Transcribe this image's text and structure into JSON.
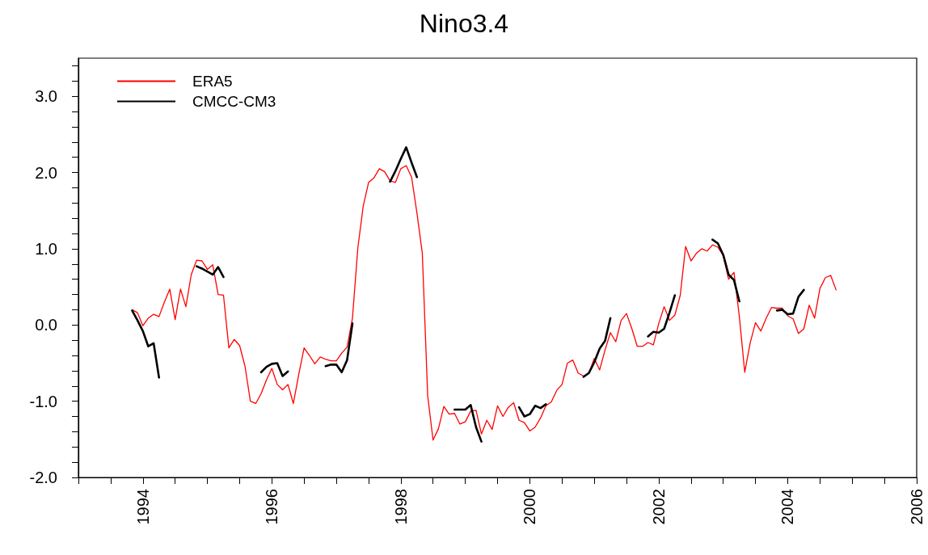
{
  "chart_data": {
    "type": "line",
    "title": "Nino3.4",
    "xlim": [
      "1993",
      "2006"
    ],
    "xticks": [
      {
        "value": "1993",
        "label": null
      },
      {
        "value": "1993-07",
        "label": null
      },
      {
        "value": "1994",
        "label": "1994"
      },
      {
        "value": "1994-07",
        "label": null
      },
      {
        "value": "1995",
        "label": null
      },
      {
        "value": "1995-07",
        "label": null
      },
      {
        "value": "1996",
        "label": "1996"
      },
      {
        "value": "1996-07",
        "label": null
      },
      {
        "value": "1997",
        "label": null
      },
      {
        "value": "1997-07",
        "label": null
      },
      {
        "value": "1998",
        "label": "1998"
      },
      {
        "value": "1998-07",
        "label": null
      },
      {
        "value": "1999",
        "label": null
      },
      {
        "value": "1999-07",
        "label": null
      },
      {
        "value": "2000",
        "label": "2000"
      },
      {
        "value": "2000-07",
        "label": null
      },
      {
        "value": "2001",
        "label": null
      },
      {
        "value": "2001-07",
        "label": null
      },
      {
        "value": "2002",
        "label": "2002"
      },
      {
        "value": "2002-07",
        "label": null
      },
      {
        "value": "2003",
        "label": null
      },
      {
        "value": "2003-07",
        "label": null
      },
      {
        "value": "2004",
        "label": "2004"
      },
      {
        "value": "2004-07",
        "label": null
      },
      {
        "value": "2005",
        "label": null
      },
      {
        "value": "2005-07",
        "label": null
      },
      {
        "value": "2006",
        "label": "2006"
      }
    ],
    "ylim": [
      -2,
      3.5
    ],
    "yticks": [
      {
        "value": -2,
        "label": "-2.0"
      },
      {
        "value": -1.8,
        "label": null
      },
      {
        "value": -1.6,
        "label": null
      },
      {
        "value": -1.4,
        "label": null
      },
      {
        "value": -1.2,
        "label": null
      },
      {
        "value": -1,
        "label": "-1.0"
      },
      {
        "value": -0.8,
        "label": null
      },
      {
        "value": -0.6,
        "label": null
      },
      {
        "value": -0.4,
        "label": null
      },
      {
        "value": -0.2,
        "label": null
      },
      {
        "value": 0,
        "label": "0.0"
      },
      {
        "value": 0.2,
        "label": null
      },
      {
        "value": 0.4,
        "label": null
      },
      {
        "value": 0.6,
        "label": null
      },
      {
        "value": 0.8,
        "label": null
      },
      {
        "value": 1,
        "label": "1.0"
      },
      {
        "value": 1.2,
        "label": null
      },
      {
        "value": 1.4,
        "label": null
      },
      {
        "value": 1.6,
        "label": null
      },
      {
        "value": 1.8,
        "label": null
      },
      {
        "value": 2,
        "label": "2.0"
      },
      {
        "value": 2.2,
        "label": null
      },
      {
        "value": 2.4,
        "label": null
      },
      {
        "value": 2.6,
        "label": null
      },
      {
        "value": 2.8,
        "label": null
      },
      {
        "value": 3,
        "label": "3.0"
      },
      {
        "value": 3.2,
        "label": null
      },
      {
        "value": 3.4,
        "label": null
      }
    ],
    "grid": false,
    "legend": "top left",
    "marker": "none",
    "line_style": "solid",
    "series": [
      {
        "name": "ERA5",
        "color": "#ff0000",
        "x": [
          "1993-11",
          "1993-12",
          "1994-01",
          "1994-02",
          "1994-03",
          "1994-04",
          "1994-05",
          "1994-06",
          "1994-07",
          "1994-08",
          "1994-09",
          "1994-10",
          "1994-11",
          "1994-12",
          "1995-01",
          "1995-02",
          "1995-03",
          "1995-04",
          "1995-05",
          "1995-06",
          "1995-07",
          "1995-08",
          "1995-09",
          "1995-10",
          "1995-11",
          "1995-12",
          "1996-01",
          "1996-02",
          "1996-03",
          "1996-04",
          "1996-05",
          "1996-06",
          "1996-07",
          "1996-08",
          "1996-09",
          "1996-10",
          "1996-11",
          "1996-12",
          "1997-01",
          "1997-02",
          "1997-03",
          "1997-04",
          "1997-05",
          "1997-06",
          "1997-07",
          "1997-08",
          "1997-09",
          "1997-10",
          "1997-11",
          "1997-12",
          "1998-01",
          "1998-02",
          "1998-03",
          "1998-04",
          "1998-05",
          "1998-06",
          "1998-07",
          "1998-08",
          "1998-09",
          "1998-10",
          "1998-11",
          "1998-12",
          "1999-01",
          "1999-02",
          "1999-03",
          "1999-04",
          "1999-05",
          "1999-06",
          "1999-07",
          "1999-08",
          "1999-09",
          "1999-10",
          "1999-11",
          "1999-12",
          "2000-01",
          "2000-02",
          "2000-03",
          "2000-04",
          "2000-05",
          "2000-06",
          "2000-07",
          "2000-08",
          "2000-09",
          "2000-10",
          "2000-11",
          "2000-12",
          "2001-01",
          "2001-02",
          "2001-03",
          "2001-04",
          "2001-05",
          "2001-06",
          "2001-07",
          "2001-08",
          "2001-09",
          "2001-10",
          "2001-11",
          "2001-12",
          "2002-01",
          "2002-02",
          "2002-03",
          "2002-04",
          "2002-05",
          "2002-06",
          "2002-07",
          "2002-08",
          "2002-09",
          "2002-10",
          "2002-11",
          "2002-12",
          "2003-01",
          "2003-02",
          "2003-03",
          "2003-04",
          "2003-05",
          "2003-06",
          "2003-07",
          "2003-08",
          "2003-09",
          "2003-10",
          "2003-11",
          "2003-12",
          "2004-01",
          "2004-02",
          "2004-03",
          "2004-04",
          "2004-05",
          "2004-06",
          "2004-07",
          "2004-08",
          "2004-09",
          "2004-10"
        ],
        "values": [
          0.2,
          0.16,
          -0.01,
          0.09,
          0.14,
          0.11,
          0.3,
          0.47,
          0.07,
          0.47,
          0.24,
          0.66,
          0.85,
          0.84,
          0.73,
          0.79,
          0.4,
          0.39,
          -0.3,
          -0.19,
          -0.27,
          -0.54,
          -1.0,
          -1.03,
          -0.9,
          -0.72,
          -0.57,
          -0.78,
          -0.85,
          -0.78,
          -1.03,
          -0.65,
          -0.3,
          -0.4,
          -0.51,
          -0.42,
          -0.45,
          -0.47,
          -0.47,
          -0.37,
          -0.29,
          0.09,
          1.01,
          1.56,
          1.87,
          1.93,
          2.05,
          2.01,
          1.89,
          1.87,
          2.05,
          2.09,
          1.94,
          1.47,
          0.94,
          -0.93,
          -1.51,
          -1.36,
          -1.07,
          -1.17,
          -1.16,
          -1.3,
          -1.27,
          -1.13,
          -1.12,
          -1.43,
          -1.25,
          -1.37,
          -1.06,
          -1.2,
          -1.08,
          -1.02,
          -1.25,
          -1.28,
          -1.39,
          -1.34,
          -1.22,
          -1.06,
          -1.01,
          -0.86,
          -0.78,
          -0.5,
          -0.46,
          -0.63,
          -0.67,
          -0.63,
          -0.44,
          -0.59,
          -0.33,
          -0.1,
          -0.22,
          0.06,
          0.15,
          -0.05,
          -0.28,
          -0.28,
          -0.23,
          -0.26,
          0.02,
          0.24,
          0.06,
          0.13,
          0.39,
          1.03,
          0.84,
          0.94,
          1.0,
          0.97,
          1.05,
          1.02,
          0.91,
          0.6,
          0.69,
          0.11,
          -0.62,
          -0.24,
          0.03,
          -0.08,
          0.09,
          0.23,
          0.22,
          0.22,
          0.12,
          0.08,
          -0.11,
          -0.05,
          0.26,
          0.09,
          0.48,
          0.62,
          0.65,
          0.46
        ]
      },
      {
        "name": "CMCC-CM3",
        "color": "#000000",
        "x": [
          "1993-11",
          "1993-12",
          "1994-01",
          "1994-02",
          "1994-03",
          "1994-04",
          "1994-05",
          "1994-11",
          "1994-12",
          "1995-01",
          "1995-02",
          "1995-03",
          "1995-04",
          "1995-05",
          "1995-11",
          "1995-12",
          "1996-01",
          "1996-02",
          "1996-03",
          "1996-04",
          "1996-05",
          "1996-11",
          "1996-12",
          "1997-01",
          "1997-02",
          "1997-03",
          "1997-04",
          "1997-05",
          "1997-11",
          "1997-12",
          "1998-01",
          "1998-02",
          "1998-03",
          "1998-04",
          "1998-05",
          "1998-11",
          "1998-12",
          "1999-01",
          "1999-02",
          "1999-03",
          "1999-04",
          "1999-05",
          "1999-11",
          "1999-12",
          "2000-01",
          "2000-02",
          "2000-03",
          "2000-04",
          "2000-05",
          "2000-11",
          "2000-12",
          "2001-01",
          "2001-02",
          "2001-03",
          "2001-04",
          "2001-05",
          "2001-11",
          "2001-12",
          "2002-01",
          "2002-02",
          "2002-03",
          "2002-04",
          "2002-05",
          "2002-11",
          "2002-12",
          "2003-01",
          "2003-02",
          "2003-03",
          "2003-04",
          "2003-05",
          "2003-11",
          "2003-12",
          "2004-01",
          "2004-02",
          "2004-03",
          "2004-04"
        ],
        "values": [
          0.19,
          0.06,
          -0.08,
          -0.28,
          -0.24,
          -0.69,
          null,
          0.77,
          0.74,
          0.7,
          0.66,
          0.76,
          0.63,
          null,
          -0.62,
          -0.55,
          -0.51,
          -0.5,
          -0.67,
          -0.61,
          null,
          -0.54,
          -0.52,
          -0.52,
          -0.62,
          -0.46,
          0.02,
          null,
          1.88,
          2.02,
          2.18,
          2.33,
          2.13,
          1.94,
          null,
          -1.11,
          -1.11,
          -1.11,
          -1.05,
          -1.34,
          -1.53,
          null,
          -1.08,
          -1.2,
          -1.17,
          -1.06,
          -1.09,
          -1.04,
          null,
          -0.68,
          -0.63,
          -0.49,
          -0.31,
          -0.21,
          0.09,
          null,
          -0.15,
          -0.09,
          -0.1,
          -0.05,
          0.16,
          0.39,
          null,
          1.12,
          1.07,
          0.92,
          0.66,
          0.59,
          0.31,
          null,
          0.19,
          0.2,
          0.14,
          0.15,
          0.37,
          0.46
        ]
      }
    ]
  }
}
